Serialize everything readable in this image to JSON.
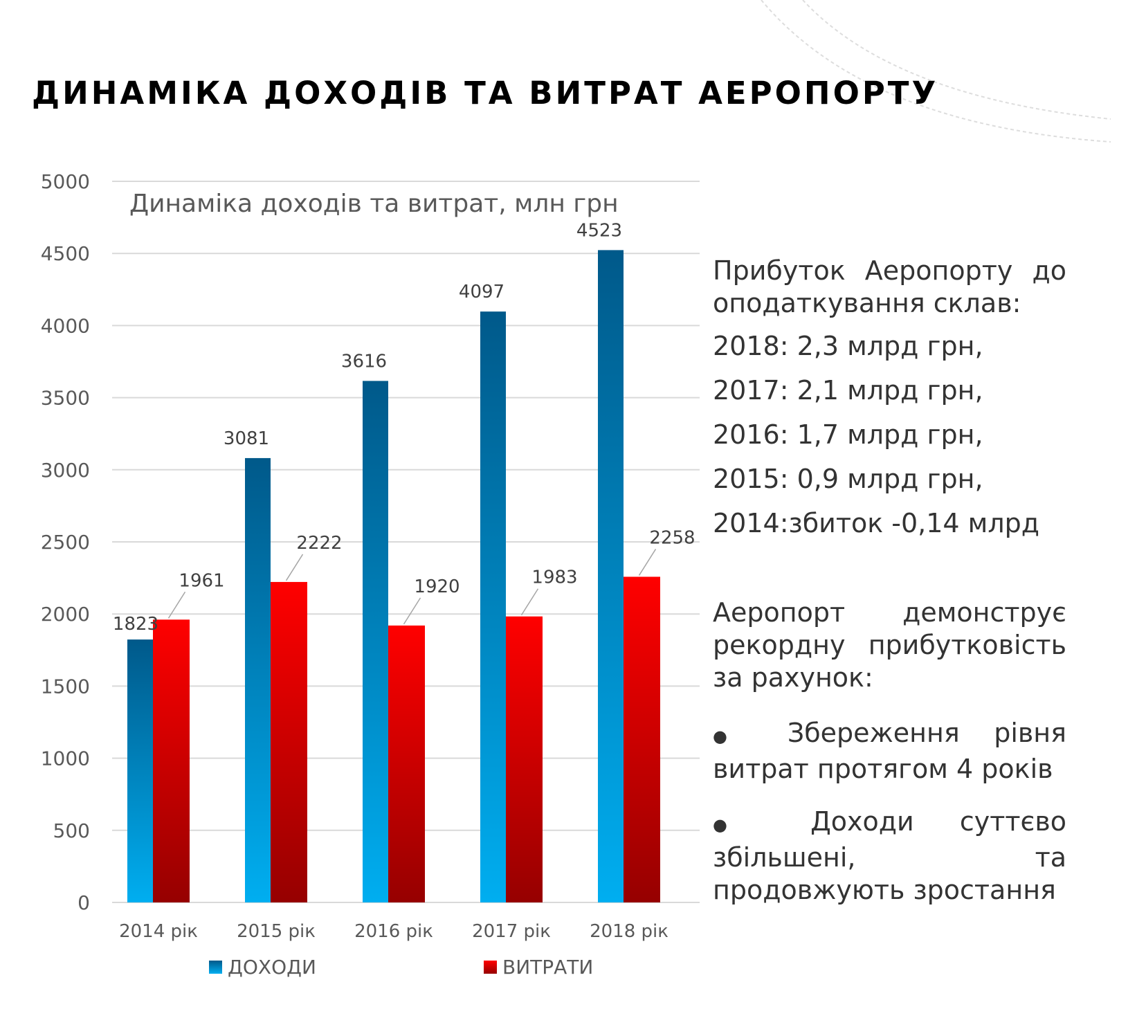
{
  "title": "ДИНАМІКА ДОХОДІВ ТА ВИТРАТ АЕРОПОРТУ",
  "chart_data": {
    "type": "bar",
    "title": "Динаміка доходів та витрат, млн грн",
    "xlabel": "",
    "ylabel": "",
    "ylim": [
      0,
      5000
    ],
    "yticks": [
      0,
      500,
      1000,
      1500,
      2000,
      2500,
      3000,
      3500,
      4000,
      4500,
      5000
    ],
    "grid": true,
    "legend_position": "bottom",
    "categories": [
      "2014 рік",
      "2015 рік",
      "2016 рік",
      "2017 рік",
      "2018 рік"
    ],
    "series": [
      {
        "name": "ДОХОДИ",
        "values": [
          1823,
          3081,
          3616,
          4097,
          4523
        ],
        "color_top": "#00598a",
        "color_bottom": "#00aef0"
      },
      {
        "name": "ВИТРАТИ",
        "values": [
          1961,
          2222,
          1920,
          1983,
          2258
        ],
        "color_top": "#ff0000",
        "color_bottom": "#960000"
      }
    ]
  },
  "side": {
    "profit_heading": "Прибуток Аеропорту до оподаткування склав:",
    "profit_lines": [
      "2018: 2,3 млрд грн,",
      "2017: 2,1 млрд грн,",
      "2016: 1,7 млрд грн,",
      "2015: 0,9 млрд грн,",
      "2014:збиток -0,14 млрд"
    ],
    "record_text": "Аеропорт демонструє рекордну прибутковість за рахунок:",
    "bullets": [
      "Збереження рівня витрат протягом 4 років",
      "Доходи суттєво збільшені, та продовжують зростання"
    ]
  }
}
